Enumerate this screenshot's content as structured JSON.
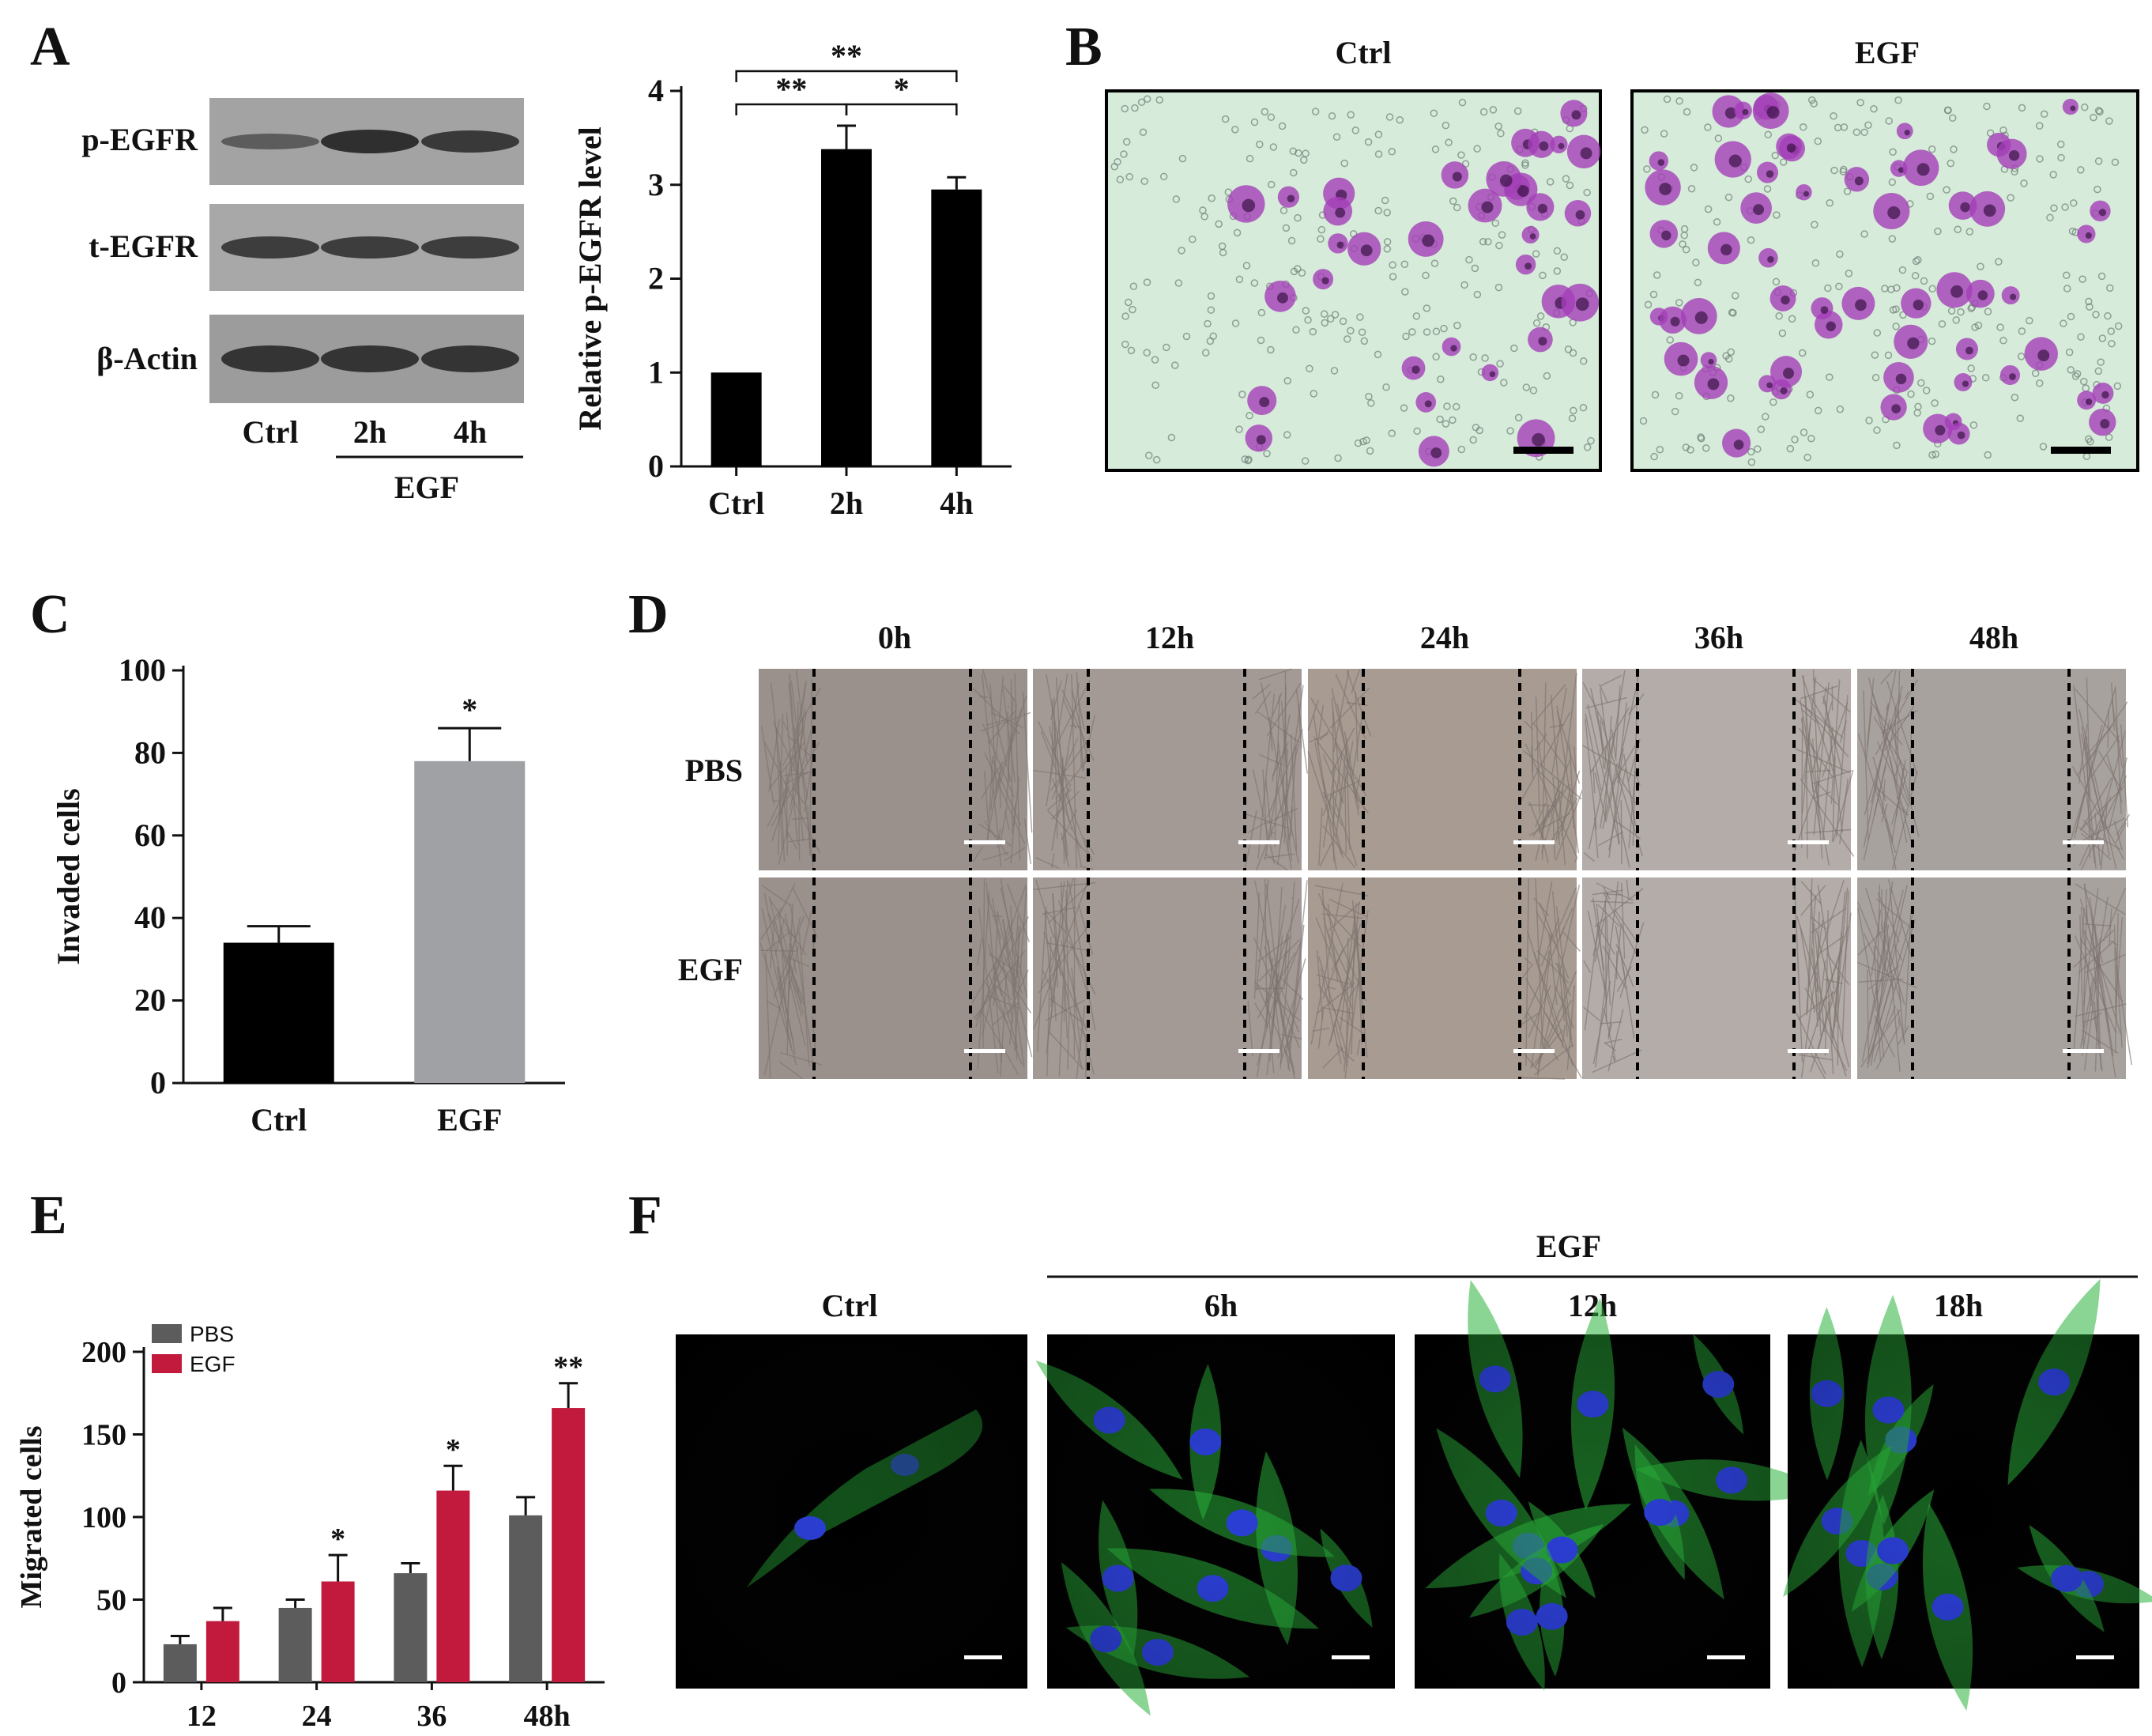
{
  "panel_letters": {
    "a": "A",
    "b": "B",
    "c": "C",
    "d": "D",
    "e": "E",
    "f": "F"
  },
  "colors": {
    "black_bar": "#000000",
    "gray_bar": "#9fa1a5",
    "pbs_bar": "#5c5c5c",
    "egf_bar": "#c11a3c",
    "nuclei": "#2b3fd8",
    "actin": "#29b23a",
    "stain": "#a43fb8",
    "well_bg": "#d6ebd9",
    "scratch_bg": "#9c928d"
  },
  "panel_a": {
    "blot_labels": [
      "p-EGFR",
      "t-EGFR",
      "β-Actin"
    ],
    "lane_labels": [
      "Ctrl",
      "2h",
      "4h"
    ],
    "treatment_label": "EGF"
  },
  "panel_b": {
    "image_titles": [
      "Ctrl",
      "EGF"
    ],
    "image_style": "crystal-violet stained transwell membrane, scale bar"
  },
  "panel_d": {
    "timepoints": [
      "0h",
      "12h",
      "24h",
      "36h",
      "48h"
    ],
    "row_labels": [
      "PBS",
      "EGF"
    ],
    "image_style": "scratch wound images with dashed wound-edge lines, scale bar"
  },
  "panel_f": {
    "group_header": "EGF",
    "image_titles": [
      "Ctrl",
      "6h",
      "12h",
      "18h"
    ],
    "image_style": "confocal fluorescence, green actin and blue nuclei, scale bar"
  },
  "chart_data": [
    {
      "panel": "A",
      "type": "bar",
      "categories": [
        "Ctrl",
        "2h",
        "4h"
      ],
      "values": [
        1.0,
        3.38,
        2.95
      ],
      "errors": [
        0.0,
        0.25,
        0.13
      ],
      "ylabel": "Relative p-EGFR level",
      "yticks": [
        0,
        1,
        2,
        3,
        4
      ],
      "ylim": [
        0,
        4
      ],
      "bar_color": "#000000",
      "significance": [
        {
          "from": "Ctrl",
          "to": "2h",
          "label": "**"
        },
        {
          "from": "2h",
          "to": "4h",
          "label": "*"
        },
        {
          "from": "Ctrl",
          "to": "4h",
          "label": "**"
        }
      ]
    },
    {
      "panel": "C",
      "type": "bar",
      "categories": [
        "Ctrl",
        "EGF"
      ],
      "values": [
        34,
        78
      ],
      "errors": [
        4,
        8
      ],
      "ylabel": "Invaded cells",
      "yticks": [
        0,
        20,
        40,
        60,
        80,
        100
      ],
      "ylim": [
        0,
        100
      ],
      "bar_colors": [
        "#000000",
        "#9fa1a5"
      ],
      "significance_marks": [
        "",
        "*"
      ]
    },
    {
      "panel": "E",
      "type": "bar",
      "categories": [
        "12",
        "24",
        "36",
        "48h"
      ],
      "series": [
        {
          "name": "PBS",
          "values": [
            23,
            45,
            66,
            101
          ],
          "errors": [
            5,
            5,
            6,
            11
          ],
          "color": "#5c5c5c"
        },
        {
          "name": "EGF",
          "values": [
            37,
            61,
            116,
            166
          ],
          "errors": [
            8,
            16,
            15,
            15
          ],
          "color": "#c11a3c"
        }
      ],
      "significance_marks": [
        "",
        "*",
        "*",
        "**"
      ],
      "ylabel": "Migrated cells",
      "yticks": [
        0,
        50,
        100,
        150,
        200
      ],
      "ylim": [
        0,
        200
      ],
      "legend": "top-left"
    }
  ]
}
